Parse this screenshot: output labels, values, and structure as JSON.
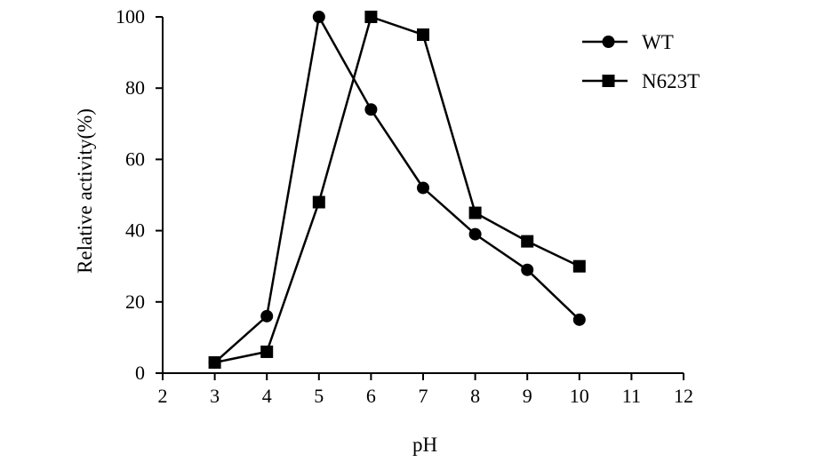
{
  "chart_data": {
    "type": "line",
    "xlabel": "pH",
    "ylabel": "Relative activity(%)",
    "xlim": [
      2,
      12
    ],
    "ylim": [
      0,
      100
    ],
    "xticks": [
      "2",
      "3",
      "4",
      "5",
      "6",
      "7",
      "8",
      "9",
      "10",
      "11",
      "12"
    ],
    "yticks": [
      "0",
      "20",
      "40",
      "60",
      "80",
      "100"
    ],
    "legend_position": "top-right",
    "grid": false,
    "series": [
      {
        "name": "WT",
        "marker": "circle",
        "x": [
          3,
          4,
          5,
          6,
          7,
          8,
          9,
          10
        ],
        "values": [
          3,
          16,
          100,
          74,
          52,
          39,
          29,
          15
        ]
      },
      {
        "name": "N623T",
        "marker": "square",
        "x": [
          3,
          4,
          5,
          6,
          7,
          8,
          9,
          10
        ],
        "values": [
          3,
          6,
          48,
          100,
          95,
          45,
          37,
          30
        ]
      }
    ]
  }
}
